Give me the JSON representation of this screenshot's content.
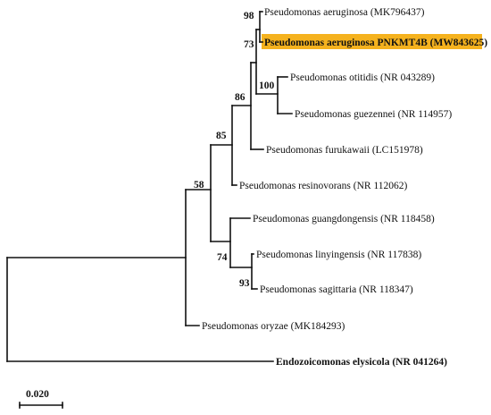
{
  "tree": {
    "highlight_color": "#f5b21e",
    "taxa": [
      {
        "id": "aeruginosa",
        "label": "Pseudomonas aeruginosa (MK796437)",
        "bold": false
      },
      {
        "id": "pnkmt4b",
        "label": "Pseudomonas aeruginosa PNKMT4B (MW843625)",
        "bold": true,
        "highlighted": true
      },
      {
        "id": "otitidis",
        "label": "Pseudomonas otitidis (NR 043289)",
        "bold": false
      },
      {
        "id": "guezennei",
        "label": "Pseudomonas guezennei (NR 114957)",
        "bold": false
      },
      {
        "id": "furukawaii",
        "label": "Pseudomonas furukawaii (LC151978)",
        "bold": false
      },
      {
        "id": "resinovorans",
        "label": "Pseudomonas resinovorans (NR 112062)",
        "bold": false
      },
      {
        "id": "guangdongensis",
        "label": "Pseudomonas guangdongensis (NR 118458)",
        "bold": false
      },
      {
        "id": "linyingensis",
        "label": "Pseudomonas linyingensis (NR 117838)",
        "bold": false
      },
      {
        "id": "sagittaria",
        "label": "Pseudomonas sagittaria (NR 118347)",
        "bold": false
      },
      {
        "id": "oryzae",
        "label": "Pseudomonas oryzae (MK184293)",
        "bold": false
      },
      {
        "id": "endozoicomonas",
        "label": "Endozoicomonas elysicola (NR 041264)",
        "bold": true
      }
    ],
    "bootstrap": [
      {
        "node": "aeruginosa_pair",
        "value": "98"
      },
      {
        "node": "aeruginosa_clade",
        "value": "73"
      },
      {
        "node": "otitidis_guezennei",
        "value": "100"
      },
      {
        "node": "furukawaii_clade",
        "value": "86"
      },
      {
        "node": "resinovorans_clade",
        "value": "85"
      },
      {
        "node": "ingroup_core",
        "value": "58"
      },
      {
        "node": "guangdongensis_clade",
        "value": "74"
      },
      {
        "node": "linyingensis_sagittaria",
        "value": "93"
      }
    ],
    "scale_bar": {
      "label": "0.020"
    }
  }
}
